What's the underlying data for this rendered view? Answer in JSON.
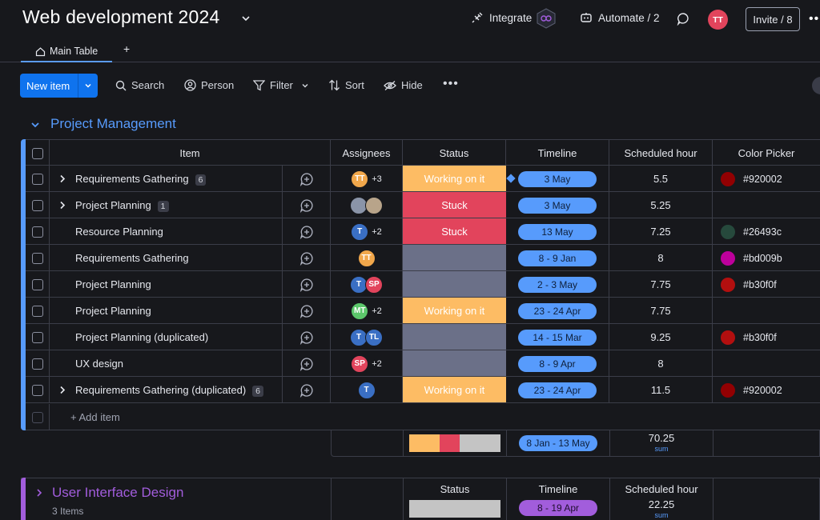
{
  "header": {
    "title": "Web development 2024",
    "integrate_label": "Integrate",
    "automate_label": "Automate / 2",
    "user_initials": "TT",
    "invite_label": "Invite / 8"
  },
  "tabs": {
    "main": "Main Table",
    "add": "+"
  },
  "toolbar": {
    "new_item": "New item",
    "search": "Search",
    "person": "Person",
    "filter": "Filter",
    "sort": "Sort",
    "hide": "Hide"
  },
  "group1": {
    "title": "Project Management",
    "accent": "#579bfc",
    "columns": {
      "item": "Item",
      "assignees": "Assignees",
      "status": "Status",
      "timeline": "Timeline",
      "hours": "Scheduled hour",
      "color": "Color Picker"
    },
    "rows": [
      {
        "name": "Requirements Gathering",
        "subitems": "6",
        "expand": true,
        "avatars": [
          {
            "t": "TT",
            "c": "#f1a74b"
          }
        ],
        "more": "+3",
        "status": "Working on it",
        "status_color": "#fdbc64",
        "timeline": "3 May",
        "diamond": true,
        "hours": "5.5",
        "swatch": "#920002",
        "color_text": "#920002"
      },
      {
        "name": "Project Planning",
        "subitems": "1",
        "expand": true,
        "avatars": [
          {
            "t": "",
            "c": "#8a94a8"
          },
          {
            "t": "",
            "c": "#b8a48a"
          }
        ],
        "more": "",
        "status": "Stuck",
        "status_color": "#e2445c",
        "timeline": "3 May",
        "diamond": false,
        "hours": "5.25",
        "swatch": "",
        "color_text": ""
      },
      {
        "name": "Resource Planning",
        "subitems": "",
        "expand": false,
        "avatars": [
          {
            "t": "T",
            "c": "#3a6fc4"
          }
        ],
        "more": "+2",
        "status": "Stuck",
        "status_color": "#e2445c",
        "timeline": "13 May",
        "diamond": false,
        "hours": "7.25",
        "swatch": "#26493c",
        "color_text": "#26493c"
      },
      {
        "name": "Requirements Gathering",
        "subitems": "",
        "expand": false,
        "avatars": [
          {
            "t": "TT",
            "c": "#f1a74b"
          }
        ],
        "more": "",
        "status": "",
        "status_color": "#6b7088",
        "timeline": "8 - 9 Jan",
        "diamond": false,
        "hours": "8",
        "swatch": "#bd009b",
        "color_text": "#bd009b"
      },
      {
        "name": "Project Planning",
        "subitems": "",
        "expand": false,
        "avatars": [
          {
            "t": "T",
            "c": "#3a6fc4"
          },
          {
            "t": "SP",
            "c": "#e2445c"
          }
        ],
        "more": "",
        "status": "",
        "status_color": "#6b7088",
        "timeline": "2 - 3 May",
        "diamond": false,
        "hours": "7.75",
        "swatch": "#b30f0f",
        "color_text": "#b30f0f"
      },
      {
        "name": "Project Planning",
        "subitems": "",
        "expand": false,
        "avatars": [
          {
            "t": "MT",
            "c": "#5cc76b"
          }
        ],
        "more": "+2",
        "status": "Working on it",
        "status_color": "#fdbc64",
        "timeline": "23 - 24 Apr",
        "diamond": false,
        "hours": "7.75",
        "swatch": "",
        "color_text": ""
      },
      {
        "name": "Project Planning (duplicated)",
        "subitems": "",
        "expand": false,
        "avatars": [
          {
            "t": "T",
            "c": "#3a6fc4"
          },
          {
            "t": "TL",
            "c": "#3a6fc4"
          }
        ],
        "more": "",
        "status": "",
        "status_color": "#6b7088",
        "timeline": "14 - 15 Mar",
        "diamond": false,
        "hours": "9.25",
        "swatch": "#b30f0f",
        "color_text": "#b30f0f"
      },
      {
        "name": "UX design",
        "subitems": "",
        "expand": false,
        "avatars": [
          {
            "t": "SP",
            "c": "#e2445c"
          }
        ],
        "more": "+2",
        "status": "",
        "status_color": "#6b7088",
        "timeline": "8 - 9 Apr",
        "diamond": false,
        "hours": "8",
        "swatch": "",
        "color_text": ""
      },
      {
        "name": "Requirements Gathering (duplicated)",
        "subitems": "6",
        "expand": true,
        "avatars": [
          {
            "t": "T",
            "c": "#3a6fc4"
          }
        ],
        "more": "",
        "status": "Working on it",
        "status_color": "#fdbc64",
        "timeline": "23 - 24 Apr",
        "diamond": false,
        "hours": "11.5",
        "swatch": "#920002",
        "color_text": "#920002"
      }
    ],
    "add_item": "+ Add item",
    "summary": {
      "status_distribution": [
        {
          "color": "#fdbc64",
          "fraction": 0.33
        },
        {
          "color": "#e2445c",
          "fraction": 0.22
        },
        {
          "color": "#c4c4c4",
          "fraction": 0.45
        }
      ],
      "timeline": "8 Jan - 13 May",
      "hours": "70.25",
      "hours_label": "sum"
    }
  },
  "group2": {
    "title": "User Interface Design",
    "count": "3 Items",
    "accent": "#a25ddc",
    "status_label": "Status",
    "timeline_label": "Timeline",
    "timeline": "8 - 19 Apr",
    "hours_label": "Scheduled hour",
    "hours": "22.25",
    "hours_sum": "sum"
  }
}
